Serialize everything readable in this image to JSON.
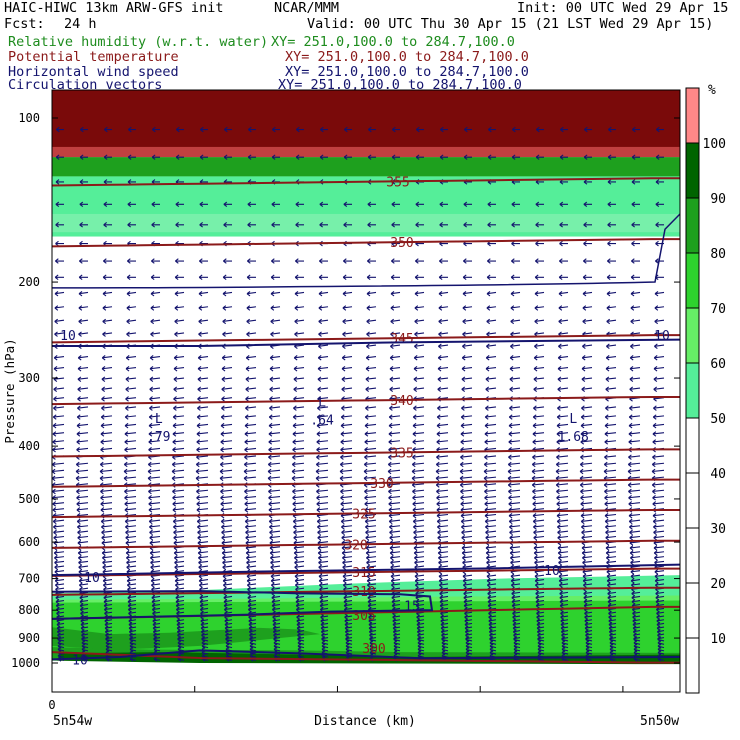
{
  "header": {
    "model_line": "HAIC-HIWC 13km ARW-GFS init",
    "org": "NCAR/MMM",
    "init": "Init: 00 UTC Wed 29 Apr 15",
    "fcst_label": "Fcst:",
    "fcst_value": "24 h",
    "valid": "Valid: 00 UTC Thu 30 Apr 15 (21 LST Wed 29 Apr 15)"
  },
  "fields": [
    {
      "name": "Relative humidity (w.r.t. water)",
      "xy": "XY= 251.0,100.0 to 284.7,100.0",
      "color": "#1e8c1e"
    },
    {
      "name": "Potential temperature",
      "xy": "XY= 251.0,100.0 to 284.7,100.0",
      "color": "#8b1a1a"
    },
    {
      "name": "Horizontal wind speed",
      "xy": "XY= 251.0,100.0 to 284.7,100.0",
      "color": "#14146e"
    },
    {
      "name": "Circulation vectors",
      "xy": "XY= 251.0,100.0 to 284.7,100.0",
      "color": "#14146e"
    }
  ],
  "chart_data": {
    "type": "heatmap",
    "ylabel": "Pressure (hPa)",
    "xlabel": "Distance (km)",
    "y_ticks": [
      100,
      200,
      300,
      400,
      500,
      600,
      700,
      800,
      900,
      1000
    ],
    "y_scale": "log",
    "ylim": [
      1050,
      85
    ],
    "x_tick_labels": {
      "origin": "0",
      "left": "5n54w",
      "right": "5n50w"
    },
    "colorbar": {
      "unit": "%",
      "levels": [
        10,
        20,
        30,
        40,
        50,
        60,
        70,
        80,
        90,
        100
      ],
      "colors": [
        "#ffffff",
        "#ffffff",
        "#ffffff",
        "#ffffff",
        "#ffffff",
        "#55ee99",
        "#66ee66",
        "#2ed22e",
        "#1ea01e",
        "#006400",
        "#ff8888"
      ]
    },
    "theta_contours": [
      {
        "label": "355",
        "p": 133
      },
      {
        "label": "350",
        "p": 172
      },
      {
        "label": "345",
        "p": 258
      },
      {
        "label": "340",
        "p": 335
      },
      {
        "label": "335",
        "p": 418
      },
      {
        "label": "330",
        "p": 475
      },
      {
        "label": "325",
        "p": 540
      },
      {
        "label": "320",
        "p": 615
      },
      {
        "label": "315",
        "p": 692
      },
      {
        "label": "310",
        "p": 750
      },
      {
        "label": "305",
        "p": 830
      },
      {
        "label": "300",
        "p": 955
      }
    ],
    "speed_labels": [
      {
        "label": "10",
        "side": "left",
        "p": 250
      },
      {
        "label": "10",
        "side": "right",
        "p": 250
      },
      {
        "label": "10",
        "side": "left",
        "p": 695
      },
      {
        "label": "10",
        "side": "right",
        "p": 675
      },
      {
        "label": "15",
        "side": "center",
        "p": 785
      },
      {
        "label": "10",
        "side": "left",
        "p": 985
      }
    ],
    "lows": [
      {
        "label": "L",
        "value": ".79",
        "x": 0.17,
        "p": 375
      },
      {
        "label": "L",
        "value": ".64",
        "x": 0.43,
        "p": 350
      },
      {
        "label": "L",
        "value": "1.68",
        "x": 0.83,
        "p": 375
      }
    ]
  }
}
